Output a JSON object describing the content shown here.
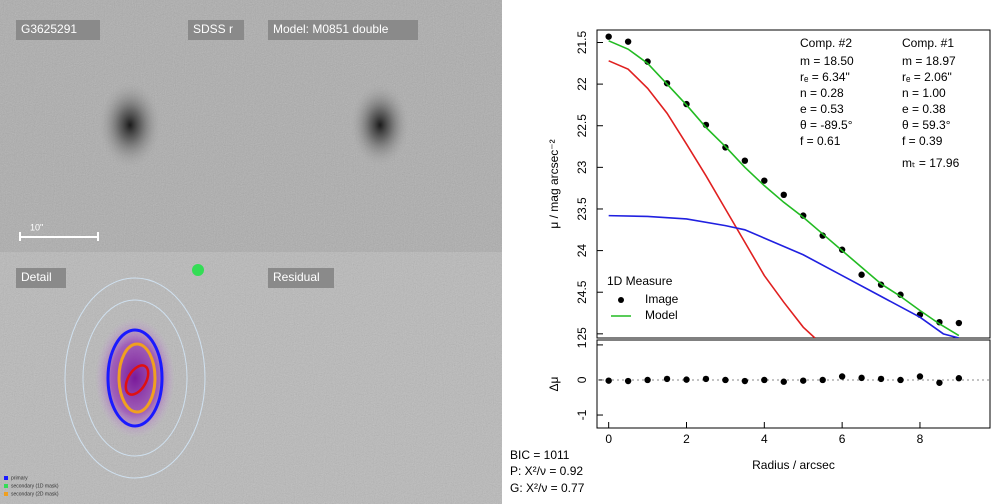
{
  "panels": {
    "labels": [
      "G3625291",
      "SDSS r",
      "Model: M0851 double",
      "Detail",
      "Residual"
    ],
    "scale_bar": "10\"",
    "mask_legend": [
      "primary",
      "secondary (1D mask)",
      "secondary (2D mask)"
    ]
  },
  "stats": [
    "BIC = 1011",
    "P: X²/ν = 0.92",
    "G: X²/ν = 0.77"
  ],
  "chart_data": [
    {
      "type": "line",
      "ylabel": "μ / mag arcsec⁻²",
      "xlim": [
        -0.3,
        9.8
      ],
      "ylim": [
        21.35,
        25.05
      ],
      "y_inverted": true,
      "yticks": [
        21.5,
        22,
        22.5,
        23,
        23.5,
        24,
        24.5,
        25
      ],
      "legend_title": "1D Measure",
      "series": [
        {
          "name": "Image",
          "style": "points",
          "color": "#000000",
          "x": [
            0,
            0.5,
            1,
            1.5,
            2,
            2.5,
            3,
            3.5,
            4,
            4.5,
            5,
            5.5,
            6,
            6.5,
            7,
            7.5,
            8,
            8.5,
            9
          ],
          "values": [
            21.43,
            21.49,
            21.73,
            21.99,
            22.24,
            22.49,
            22.76,
            22.92,
            23.16,
            23.33,
            23.58,
            23.82,
            23.99,
            24.29,
            24.41,
            24.53,
            24.77,
            24.86,
            24.87
          ]
        },
        {
          "name": "Model",
          "style": "line",
          "color": "#22bb22",
          "x": [
            0,
            0.5,
            1,
            1.5,
            2,
            2.5,
            3,
            3.5,
            4,
            4.5,
            5,
            5.5,
            6,
            6.5,
            7,
            7.5,
            8,
            8.5,
            9
          ],
          "values": [
            21.48,
            21.58,
            21.75,
            22.0,
            22.25,
            22.52,
            22.75,
            23.0,
            23.22,
            23.42,
            23.6,
            23.8,
            24.0,
            24.2,
            24.4,
            24.55,
            24.72,
            24.88,
            25.02
          ]
        },
        {
          "name": "Comp. #1",
          "style": "line",
          "color": "#e02020",
          "x": [
            0,
            0.5,
            1,
            1.5,
            2,
            2.5,
            3,
            3.5,
            4,
            4.5,
            5,
            5.3
          ],
          "values": [
            21.72,
            21.82,
            22.05,
            22.35,
            22.72,
            23.1,
            23.5,
            23.9,
            24.3,
            24.62,
            24.92,
            25.05
          ],
          "params": [
            "m = 18.97",
            "rₑ = 2.06\"",
            "n = 1.00",
            "e = 0.38",
            "θ = 59.3°",
            "f = 0.39",
            "mₜ = 17.96"
          ]
        },
        {
          "name": "Comp. #2",
          "style": "line",
          "color": "#2020e0",
          "x": [
            0,
            1,
            2,
            3,
            3.5,
            4,
            5,
            6,
            7,
            8,
            8.6,
            9
          ],
          "values": [
            23.58,
            23.59,
            23.62,
            23.7,
            23.75,
            23.85,
            24.05,
            24.3,
            24.55,
            24.8,
            25.0,
            25.05
          ],
          "params": [
            "m = 18.50",
            "rₑ = 6.34\"",
            "n = 0.28",
            "e = 0.53",
            "θ = -89.5°",
            "f = 0.61"
          ]
        }
      ]
    },
    {
      "type": "scatter",
      "ylabel": "Δμ",
      "xlabel": "Radius / arcsec",
      "xlim": [
        -0.3,
        9.8
      ],
      "ylim": [
        -1.37,
        1.14
      ],
      "xticks": [
        0,
        2,
        4,
        6,
        8
      ],
      "yticks": [
        -1,
        0,
        1
      ],
      "color": "#000000",
      "x": [
        0,
        0.5,
        1,
        1.5,
        2,
        2.5,
        3,
        3.5,
        4,
        4.5,
        5,
        5.5,
        6,
        6.5,
        7,
        7.5,
        8,
        8.5,
        9
      ],
      "values": [
        -0.02,
        -0.03,
        0.0,
        0.03,
        0.01,
        0.03,
        0.0,
        -0.03,
        0.0,
        -0.05,
        -0.02,
        0.0,
        0.1,
        0.06,
        0.03,
        0.0,
        0.1,
        -0.08,
        0.05
      ]
    }
  ]
}
